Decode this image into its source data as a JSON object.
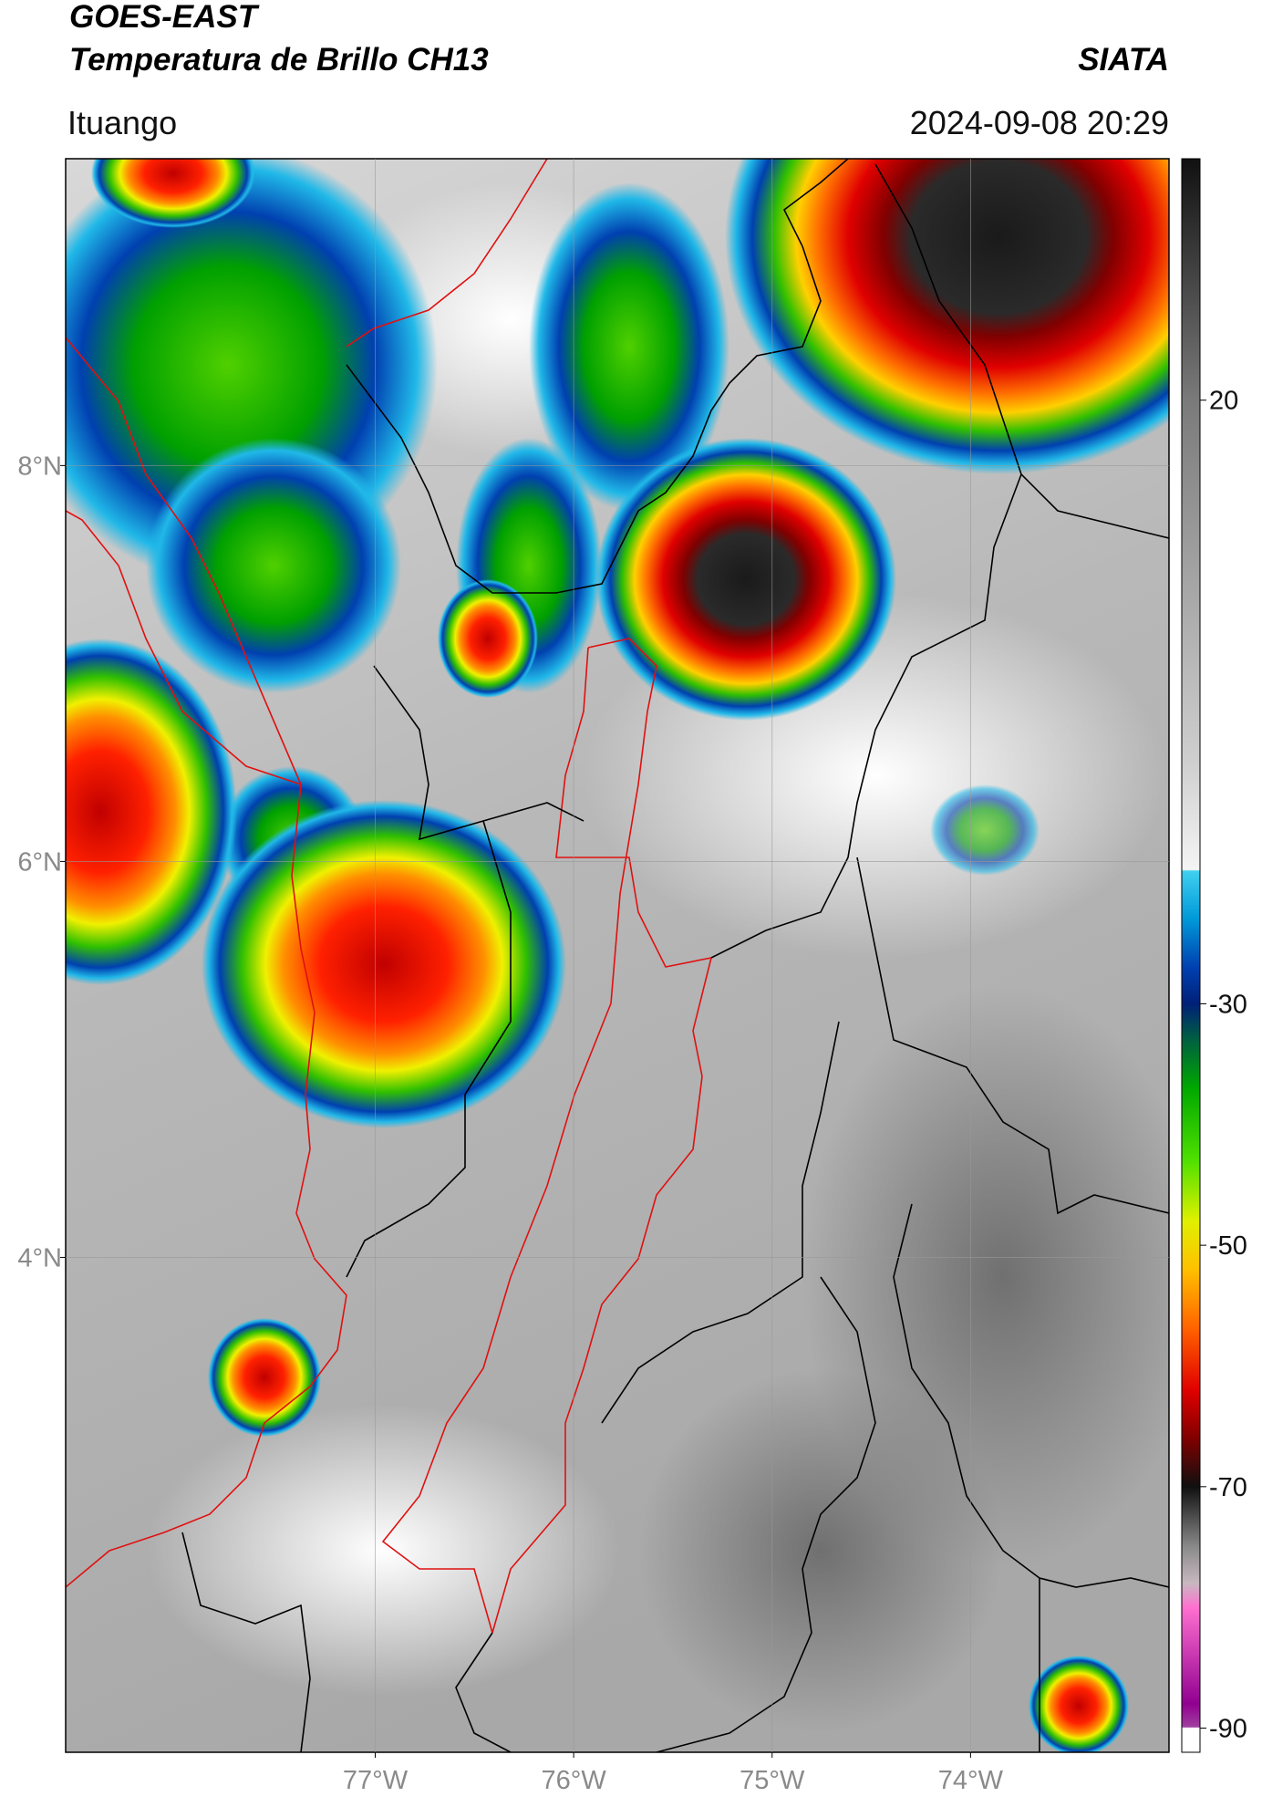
{
  "header": {
    "title": "GOES-EAST",
    "subtitle": "Temperatura de Brillo CH13",
    "brand": "SIATA",
    "location": "Ituango",
    "datetime": "2024-09-08 20:29"
  },
  "map": {
    "xlim": [
      -78.56,
      -73.0
    ],
    "ylim": [
      1.5,
      9.55
    ],
    "xticks": [
      {
        "value": -77,
        "label": "77°W"
      },
      {
        "value": -76,
        "label": "76°W"
      },
      {
        "value": -75,
        "label": "75°W"
      },
      {
        "value": -74,
        "label": "74°W"
      }
    ],
    "yticks": [
      {
        "value": 8,
        "label": "8°N"
      },
      {
        "value": 6,
        "label": "6°N"
      },
      {
        "value": 4,
        "label": "4°N"
      }
    ],
    "grid": true
  },
  "colorbar": {
    "lim": [
      -92,
      40
    ],
    "ticks": [
      20,
      -30,
      -50,
      -70,
      -90
    ],
    "colormap": [
      {
        "value": 40,
        "color": "#111111"
      },
      {
        "value": 20,
        "color": "#7a7a7a"
      },
      {
        "value": -10,
        "color": "#cfcfcf"
      },
      {
        "value": -18.9,
        "color": "#f4f4f4"
      },
      {
        "value": -19,
        "color": "#40d0f0"
      },
      {
        "value": -23,
        "color": "#0098d8"
      },
      {
        "value": -27,
        "color": "#0040b0"
      },
      {
        "value": -30,
        "color": "#002078"
      },
      {
        "value": -33,
        "color": "#006040"
      },
      {
        "value": -37,
        "color": "#00a800"
      },
      {
        "value": -43,
        "color": "#50e000"
      },
      {
        "value": -48,
        "color": "#e0f000"
      },
      {
        "value": -52,
        "color": "#ffc000"
      },
      {
        "value": -57,
        "color": "#ff6000"
      },
      {
        "value": -62,
        "color": "#e00000"
      },
      {
        "value": -66,
        "color": "#800000"
      },
      {
        "value": -70,
        "color": "#101010"
      },
      {
        "value": -75,
        "color": "#8a8a8a"
      },
      {
        "value": -78,
        "color": "#c8b8c0"
      },
      {
        "value": -80,
        "color": "#ff70d0"
      },
      {
        "value": -88,
        "color": "#900090"
      },
      {
        "value": -89.9,
        "color": "#a040a0"
      },
      {
        "value": -90,
        "color": "#ffffff"
      }
    ]
  }
}
